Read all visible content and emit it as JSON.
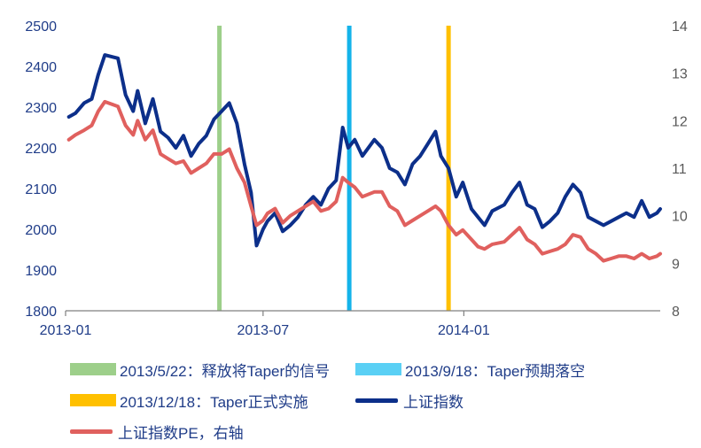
{
  "chart_data": {
    "type": "line",
    "x_range": [
      "2013-01-01",
      "2014-06-30"
    ],
    "x_ticks": [
      "2013-01",
      "2013-07",
      "2014-01"
    ],
    "y_left": {
      "min": 1800,
      "max": 2500,
      "ticks": [
        "1800",
        "1900",
        "2000",
        "2100",
        "2200",
        "2300",
        "2400",
        "2500"
      ]
    },
    "y_right": {
      "min": 8,
      "max": 14,
      "ticks": [
        "8",
        "9",
        "10",
        "11",
        "12",
        "13",
        "14"
      ]
    },
    "events": [
      {
        "name": "2013/5/22：释放将Taper的信号",
        "date": "2013-05-22",
        "color": "#9dcf8a"
      },
      {
        "name": "2013/9/18：Taper预期落空",
        "date": "2013-09-18",
        "color": "#14b3ea"
      },
      {
        "name": "2013/12/18：Taper正式实施",
        "date": "2013-12-18",
        "color": "#ffc000"
      }
    ],
    "series": [
      {
        "name": "上证指数",
        "axis": "left",
        "color": "#0c2f8a",
        "points": [
          [
            "2013-01-04",
            2276
          ],
          [
            "2013-01-10",
            2285
          ],
          [
            "2013-01-18",
            2310
          ],
          [
            "2013-01-25",
            2320
          ],
          [
            "2013-01-31",
            2380
          ],
          [
            "2013-02-06",
            2428
          ],
          [
            "2013-02-18",
            2420
          ],
          [
            "2013-02-25",
            2330
          ],
          [
            "2013-03-04",
            2290
          ],
          [
            "2013-03-08",
            2340
          ],
          [
            "2013-03-15",
            2260
          ],
          [
            "2013-03-22",
            2320
          ],
          [
            "2013-03-29",
            2240
          ],
          [
            "2013-04-05",
            2225
          ],
          [
            "2013-04-12",
            2200
          ],
          [
            "2013-04-19",
            2230
          ],
          [
            "2013-04-26",
            2180
          ],
          [
            "2013-05-03",
            2210
          ],
          [
            "2013-05-10",
            2230
          ],
          [
            "2013-05-17",
            2270
          ],
          [
            "2013-05-24",
            2290
          ],
          [
            "2013-05-31",
            2310
          ],
          [
            "2013-06-07",
            2260
          ],
          [
            "2013-06-14",
            2160
          ],
          [
            "2013-06-20",
            2090
          ],
          [
            "2013-06-25",
            1960
          ],
          [
            "2013-07-01",
            2000
          ],
          [
            "2013-07-05",
            2020
          ],
          [
            "2013-07-12",
            2040
          ],
          [
            "2013-07-19",
            1995
          ],
          [
            "2013-07-26",
            2010
          ],
          [
            "2013-08-02",
            2030
          ],
          [
            "2013-08-09",
            2060
          ],
          [
            "2013-08-16",
            2080
          ],
          [
            "2013-08-23",
            2060
          ],
          [
            "2013-08-30",
            2100
          ],
          [
            "2013-09-06",
            2120
          ],
          [
            "2013-09-12",
            2250
          ],
          [
            "2013-09-17",
            2200
          ],
          [
            "2013-09-23",
            2220
          ],
          [
            "2013-09-30",
            2180
          ],
          [
            "2013-10-11",
            2220
          ],
          [
            "2013-10-18",
            2200
          ],
          [
            "2013-10-25",
            2150
          ],
          [
            "2013-11-01",
            2140
          ],
          [
            "2013-11-08",
            2110
          ],
          [
            "2013-11-15",
            2160
          ],
          [
            "2013-11-22",
            2180
          ],
          [
            "2013-11-29",
            2210
          ],
          [
            "2013-12-06",
            2240
          ],
          [
            "2013-12-11",
            2180
          ],
          [
            "2013-12-18",
            2150
          ],
          [
            "2013-12-25",
            2080
          ],
          [
            "2013-12-31",
            2115
          ],
          [
            "2014-01-08",
            2050
          ],
          [
            "2014-01-14",
            2030
          ],
          [
            "2014-01-20",
            2010
          ],
          [
            "2014-01-27",
            2045
          ],
          [
            "2014-02-07",
            2060
          ],
          [
            "2014-02-14",
            2090
          ],
          [
            "2014-02-21",
            2115
          ],
          [
            "2014-02-28",
            2060
          ],
          [
            "2014-03-07",
            2050
          ],
          [
            "2014-03-14",
            2005
          ],
          [
            "2014-03-21",
            2020
          ],
          [
            "2014-03-28",
            2040
          ],
          [
            "2014-04-04",
            2080
          ],
          [
            "2014-04-11",
            2110
          ],
          [
            "2014-04-18",
            2090
          ],
          [
            "2014-04-25",
            2030
          ],
          [
            "2014-05-02",
            2020
          ],
          [
            "2014-05-09",
            2010
          ],
          [
            "2014-05-16",
            2020
          ],
          [
            "2014-05-23",
            2030
          ],
          [
            "2014-05-30",
            2040
          ],
          [
            "2014-06-06",
            2030
          ],
          [
            "2014-06-13",
            2070
          ],
          [
            "2014-06-20",
            2030
          ],
          [
            "2014-06-27",
            2040
          ],
          [
            "2014-06-30",
            2050
          ]
        ]
      },
      {
        "name": "上证指数PE，右轴",
        "axis": "right",
        "color": "#e0605e",
        "points": [
          [
            "2013-01-04",
            11.6
          ],
          [
            "2013-01-10",
            11.7
          ],
          [
            "2013-01-18",
            11.8
          ],
          [
            "2013-01-25",
            11.9
          ],
          [
            "2013-01-31",
            12.2
          ],
          [
            "2013-02-06",
            12.4
          ],
          [
            "2013-02-18",
            12.3
          ],
          [
            "2013-02-25",
            11.9
          ],
          [
            "2013-03-04",
            11.7
          ],
          [
            "2013-03-08",
            12.0
          ],
          [
            "2013-03-15",
            11.6
          ],
          [
            "2013-03-22",
            11.8
          ],
          [
            "2013-03-29",
            11.3
          ],
          [
            "2013-04-05",
            11.2
          ],
          [
            "2013-04-12",
            11.1
          ],
          [
            "2013-04-19",
            11.15
          ],
          [
            "2013-04-26",
            10.9
          ],
          [
            "2013-05-03",
            11.0
          ],
          [
            "2013-05-10",
            11.1
          ],
          [
            "2013-05-17",
            11.3
          ],
          [
            "2013-05-24",
            11.3
          ],
          [
            "2013-05-31",
            11.4
          ],
          [
            "2013-06-07",
            11.0
          ],
          [
            "2013-06-14",
            10.7
          ],
          [
            "2013-06-20",
            10.2
          ],
          [
            "2013-06-25",
            9.8
          ],
          [
            "2013-07-01",
            9.9
          ],
          [
            "2013-07-05",
            10.05
          ],
          [
            "2013-07-12",
            10.15
          ],
          [
            "2013-07-19",
            9.85
          ],
          [
            "2013-07-26",
            10.0
          ],
          [
            "2013-08-02",
            10.1
          ],
          [
            "2013-08-09",
            10.2
          ],
          [
            "2013-08-16",
            10.3
          ],
          [
            "2013-08-23",
            10.1
          ],
          [
            "2013-08-30",
            10.15
          ],
          [
            "2013-09-06",
            10.3
          ],
          [
            "2013-09-12",
            10.8
          ],
          [
            "2013-09-17",
            10.7
          ],
          [
            "2013-09-23",
            10.6
          ],
          [
            "2013-09-30",
            10.4
          ],
          [
            "2013-10-11",
            10.5
          ],
          [
            "2013-10-18",
            10.5
          ],
          [
            "2013-10-25",
            10.2
          ],
          [
            "2013-11-01",
            10.1
          ],
          [
            "2013-11-08",
            9.8
          ],
          [
            "2013-11-15",
            9.9
          ],
          [
            "2013-11-22",
            10.0
          ],
          [
            "2013-11-29",
            10.1
          ],
          [
            "2013-12-06",
            10.2
          ],
          [
            "2013-12-11",
            10.1
          ],
          [
            "2013-12-18",
            9.8
          ],
          [
            "2013-12-25",
            9.6
          ],
          [
            "2013-12-31",
            9.7
          ],
          [
            "2014-01-08",
            9.5
          ],
          [
            "2014-01-14",
            9.35
          ],
          [
            "2014-01-20",
            9.3
          ],
          [
            "2014-01-27",
            9.4
          ],
          [
            "2014-02-07",
            9.45
          ],
          [
            "2014-02-14",
            9.6
          ],
          [
            "2014-02-21",
            9.75
          ],
          [
            "2014-02-28",
            9.5
          ],
          [
            "2014-03-07",
            9.4
          ],
          [
            "2014-03-14",
            9.2
          ],
          [
            "2014-03-21",
            9.25
          ],
          [
            "2014-03-28",
            9.3
          ],
          [
            "2014-04-04",
            9.4
          ],
          [
            "2014-04-11",
            9.6
          ],
          [
            "2014-04-18",
            9.55
          ],
          [
            "2014-04-25",
            9.3
          ],
          [
            "2014-05-02",
            9.2
          ],
          [
            "2014-05-09",
            9.05
          ],
          [
            "2014-05-16",
            9.1
          ],
          [
            "2014-05-23",
            9.15
          ],
          [
            "2014-05-30",
            9.15
          ],
          [
            "2014-06-06",
            9.1
          ],
          [
            "2014-06-13",
            9.2
          ],
          [
            "2014-06-20",
            9.1
          ],
          [
            "2014-06-27",
            9.15
          ],
          [
            "2014-06-30",
            9.2
          ]
        ]
      }
    ],
    "legend": {
      "placement": "bottom",
      "items": [
        {
          "label": "2013/5/22：释放将Taper的信号",
          "kind": "swatch",
          "color": "#9dcf8a"
        },
        {
          "label": "2013/9/18：Taper预期落空",
          "kind": "swatch",
          "color": "#5ad0f5"
        },
        {
          "label": "2013/12/18：Taper正式实施",
          "kind": "swatch",
          "color": "#ffc000"
        },
        {
          "label": "上证指数",
          "kind": "line",
          "color": "#0c2f8a"
        },
        {
          "label": "上证指数PE，右轴",
          "kind": "line",
          "color": "#e0605e"
        }
      ]
    },
    "grid": false
  }
}
